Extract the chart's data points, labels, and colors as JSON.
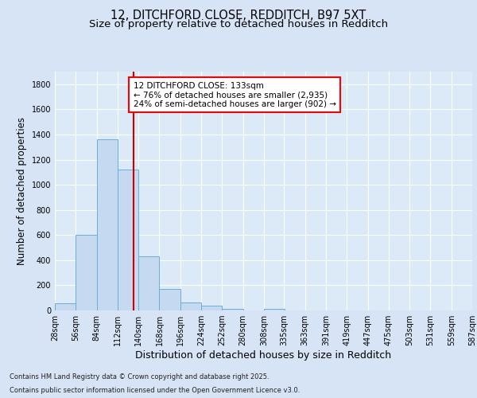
{
  "title_line1": "12, DITCHFORD CLOSE, REDDITCH, B97 5XT",
  "title_line2": "Size of property relative to detached houses in Redditch",
  "xlabel": "Distribution of detached houses by size in Redditch",
  "ylabel": "Number of detached properties",
  "bin_edges": [
    28,
    56,
    84,
    112,
    140,
    168,
    196,
    224,
    252,
    280,
    308,
    335,
    363,
    391,
    419,
    447,
    475,
    503,
    531,
    559,
    587
  ],
  "bar_heights": [
    55,
    600,
    1360,
    1120,
    430,
    170,
    65,
    38,
    15,
    0,
    15,
    0,
    0,
    0,
    0,
    0,
    0,
    0,
    0,
    0
  ],
  "bar_color": "#c5d9f0",
  "bar_edge_color": "#6baed6",
  "vline_x": 133,
  "vline_color": "#cc0000",
  "ylim": [
    0,
    1900
  ],
  "yticks": [
    0,
    200,
    400,
    600,
    800,
    1000,
    1200,
    1400,
    1600,
    1800
  ],
  "annotation_line1": "12 DITCHFORD CLOSE: 133sqm",
  "annotation_line2": "← 76% of detached houses are smaller (2,935)",
  "annotation_line3": "24% of semi-detached houses are larger (902) →",
  "bg_color": "#d6e4f5",
  "plot_bg_color": "#dce9f7",
  "footer_line1": "Contains HM Land Registry data © Crown copyright and database right 2025.",
  "footer_line2": "Contains public sector information licensed under the Open Government Licence v3.0.",
  "grid_color": "#ffffff",
  "title_fontsize": 10.5,
  "subtitle_fontsize": 9.5,
  "xlabel_fontsize": 9,
  "ylabel_fontsize": 8.5,
  "tick_fontsize": 7,
  "annot_fontsize": 7.5,
  "footer_fontsize": 6
}
